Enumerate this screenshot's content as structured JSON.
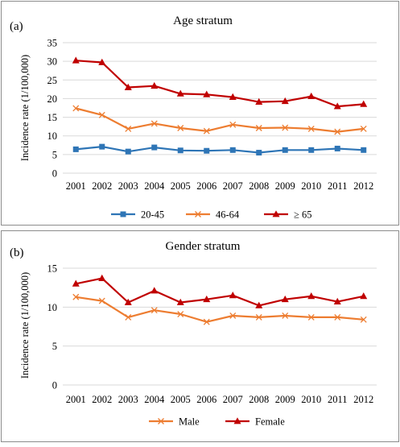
{
  "chart_data": [
    {
      "panel_label": "(a)",
      "type": "line",
      "title": "Age stratum",
      "xlabel": "",
      "ylabel": "Incidence rate (1/100,000)",
      "categories": [
        "2001",
        "2002",
        "2003",
        "2004",
        "2005",
        "2006",
        "2007",
        "2008",
        "2009",
        "2010",
        "2011",
        "2012"
      ],
      "ylim": [
        0,
        35
      ],
      "yticks": [
        0,
        5,
        10,
        15,
        20,
        25,
        30,
        35
      ],
      "grid": true,
      "legend": "bottom",
      "series": [
        {
          "name": "20-45",
          "color": "#2e75b6",
          "marker": "square",
          "values": [
            6.4,
            7.1,
            5.8,
            6.9,
            6.1,
            6.0,
            6.2,
            5.5,
            6.2,
            6.2,
            6.6,
            6.2
          ]
        },
        {
          "name": "46-64",
          "color": "#ed7d31",
          "marker": "x",
          "values": [
            17.4,
            15.6,
            11.9,
            13.3,
            12.1,
            11.3,
            13.0,
            12.1,
            12.2,
            11.9,
            11.1,
            11.9
          ]
        },
        {
          "name": "≥ 65",
          "color": "#c00000",
          "marker": "triangle",
          "values": [
            30.2,
            29.7,
            23.0,
            23.4,
            21.3,
            21.1,
            20.4,
            19.1,
            19.3,
            20.6,
            17.9,
            18.5
          ]
        }
      ]
    },
    {
      "panel_label": "(b)",
      "type": "line",
      "title": "Gender stratum",
      "xlabel": "",
      "ylabel": "Incidence rate (1/100,000)",
      "categories": [
        "2001",
        "2002",
        "2003",
        "2004",
        "2005",
        "2006",
        "2007",
        "2008",
        "2009",
        "2010",
        "2011",
        "2012"
      ],
      "ylim": [
        0,
        15
      ],
      "yticks": [
        0,
        5,
        10,
        15
      ],
      "grid": true,
      "legend": "bottom",
      "series": [
        {
          "name": "Male",
          "color": "#ed7d31",
          "marker": "x",
          "values": [
            11.3,
            10.8,
            8.7,
            9.6,
            9.1,
            8.1,
            8.9,
            8.7,
            8.9,
            8.7,
            8.7,
            8.4
          ]
        },
        {
          "name": "Female",
          "color": "#c00000",
          "marker": "triangle",
          "values": [
            13.0,
            13.7,
            10.6,
            12.1,
            10.6,
            11.0,
            11.5,
            10.2,
            11.0,
            11.4,
            10.7,
            11.4
          ]
        }
      ]
    }
  ]
}
